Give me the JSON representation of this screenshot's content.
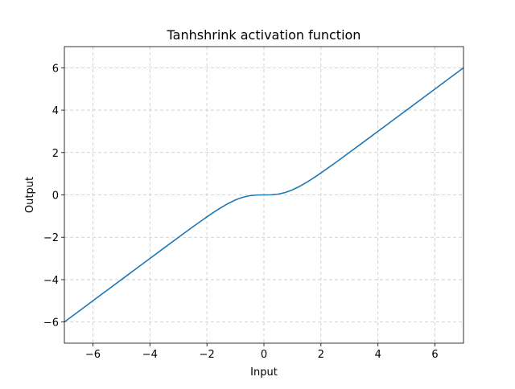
{
  "chart_data": {
    "type": "line",
    "title": "Tanhshrink activation function",
    "xlabel": "Input",
    "ylabel": "Output",
    "x": [
      -7,
      -6.5,
      -6,
      -5.5,
      -5,
      -4.5,
      -4,
      -3.5,
      -3,
      -2.5,
      -2,
      -1.75,
      -1.5,
      -1.25,
      -1,
      -0.75,
      -0.5,
      -0.25,
      0,
      0.25,
      0.5,
      0.75,
      1,
      1.25,
      1.5,
      1.75,
      2,
      2.5,
      3,
      3.5,
      4,
      4.5,
      5,
      5.5,
      6,
      6.5,
      7
    ],
    "series": [
      {
        "name": "Tanhshrink",
        "color": "#1f77b4",
        "values": [
          -6.0,
          -5.5,
          -5.0,
          -4.5,
          -4.0,
          -3.5,
          -3.001,
          -2.502,
          -2.005,
          -1.513,
          -1.036,
          -0.809,
          -0.595,
          -0.402,
          -0.238,
          -0.115,
          -0.038,
          -0.005,
          0,
          0.005,
          0.038,
          0.115,
          0.238,
          0.402,
          0.595,
          0.809,
          1.036,
          1.513,
          2.005,
          2.502,
          3.001,
          3.5,
          4.0,
          4.5,
          5.0,
          5.5,
          6.0
        ]
      }
    ],
    "xlim": [
      -7,
      7
    ],
    "ylim": [
      -7,
      7
    ],
    "xticks": [
      {
        "value": -6,
        "label": "−6"
      },
      {
        "value": -4,
        "label": "−4"
      },
      {
        "value": -2,
        "label": "−2"
      },
      0,
      2,
      4,
      6
    ],
    "yticks": [
      {
        "value": -6,
        "label": "−6"
      },
      {
        "value": -4,
        "label": "−4"
      },
      {
        "value": -2,
        "label": "−2"
      },
      0,
      2,
      4,
      6
    ],
    "grid": true
  }
}
